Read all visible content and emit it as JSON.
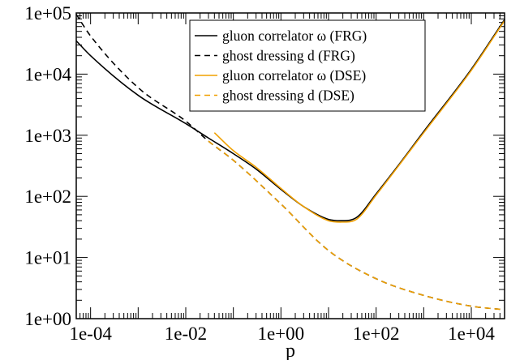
{
  "chart_data": {
    "type": "line",
    "title": "",
    "xlabel": "p",
    "ylabel": "",
    "xscale": "log",
    "yscale": "log",
    "xlim": [
      5e-05,
      50000
    ],
    "ylim": [
      1,
      100000
    ],
    "x_tick_values": [
      0.0001,
      0.01,
      1,
      100,
      10000
    ],
    "x_tick_labels": [
      "1e-04",
      "1e-02",
      "1e+00",
      "1e+02",
      "1e+04"
    ],
    "y_tick_values": [
      1,
      10,
      100,
      1000,
      10000,
      100000
    ],
    "y_tick_labels": [
      "1e+00",
      "1e+01",
      "1e+02",
      "1e+03",
      "1e+04",
      "1e+05"
    ],
    "grid": false,
    "legend_position": "top-right",
    "series": [
      {
        "name": "gluon correlator ω (FRG)",
        "color": "#000000",
        "dash": "solid",
        "x": [
          5e-05,
          0.0001,
          0.001,
          0.01,
          0.03,
          0.1,
          0.3,
          1,
          3,
          10,
          20,
          40,
          100,
          300,
          1000,
          10000,
          50000
        ],
        "y": [
          35000,
          20000,
          4500,
          1550,
          900,
          500,
          280,
          130,
          68,
          42,
          40,
          46,
          110,
          330,
          1150,
          12000,
          78000
        ]
      },
      {
        "name": "ghost dressing d (FRG)",
        "color": "#000000",
        "dash": "dashed",
        "x": [
          5e-05,
          0.0001,
          0.001,
          0.01,
          0.03,
          0.1,
          1,
          10,
          100,
          1000,
          10000,
          50000
        ],
        "y": [
          95000,
          42000,
          6000,
          1700,
          800,
          390,
          75,
          13,
          4.5,
          2.4,
          1.6,
          1.4
        ]
      },
      {
        "name": "gluon correlator ω (DSE)",
        "color": "#f0a000",
        "dash": "solid",
        "x": [
          0.04,
          0.1,
          0.3,
          1,
          3,
          10,
          20,
          40,
          100,
          300,
          1000,
          10000,
          50000
        ],
        "y": [
          1100,
          560,
          300,
          135,
          68,
          40,
          38,
          43,
          105,
          320,
          1100,
          11500,
          75000
        ]
      },
      {
        "name": "ghost dressing d (DSE)",
        "color": "#f0a000",
        "dash": "dashed",
        "x": [
          0.03,
          0.1,
          1,
          10,
          100,
          1000,
          10000,
          50000
        ],
        "y": [
          800,
          390,
          75,
          13,
          4.5,
          2.4,
          1.6,
          1.4
        ]
      }
    ]
  }
}
